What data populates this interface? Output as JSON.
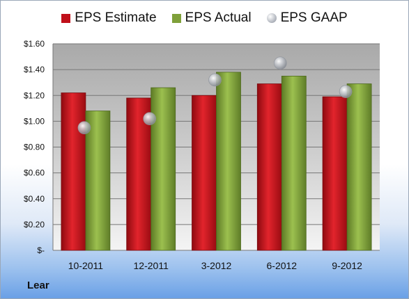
{
  "company": "Lear",
  "chart_data": {
    "type": "bar",
    "categories": [
      "10-2011",
      "12-2011",
      "3-2012",
      "6-2012",
      "9-2012"
    ],
    "series": [
      {
        "name": "EPS Estimate",
        "kind": "bar",
        "color": "#c0101a",
        "values": [
          1.22,
          1.18,
          1.2,
          1.29,
          1.19
        ]
      },
      {
        "name": "EPS Actual",
        "kind": "bar",
        "color": "#7fa03a",
        "values": [
          1.08,
          1.26,
          1.38,
          1.35,
          1.29
        ]
      },
      {
        "name": "EPS GAAP",
        "kind": "marker",
        "color": "#b8bcc4",
        "values": [
          0.95,
          1.02,
          1.32,
          1.45,
          1.23
        ]
      }
    ],
    "ylim": [
      0,
      1.6
    ],
    "yticks": [
      0,
      0.2,
      0.4,
      0.6,
      0.8,
      1.0,
      1.2,
      1.4,
      1.6
    ],
    "ytick_labels": [
      "$-",
      "$0.20",
      "$0.40",
      "$0.60",
      "$0.80",
      "$1.00",
      "$1.20",
      "$1.40",
      "$1.60"
    ],
    "grid": true,
    "legend_position": "top"
  }
}
